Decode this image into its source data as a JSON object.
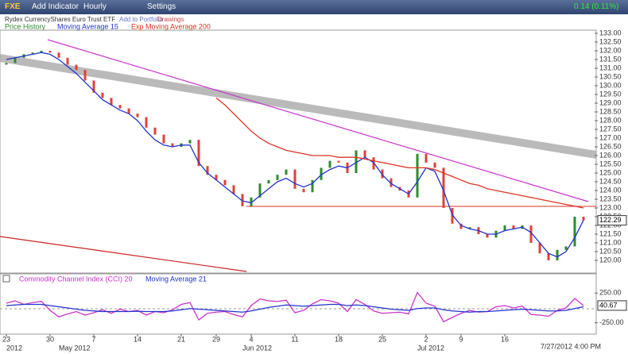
{
  "toolbar": {
    "symbol": "FXE",
    "items": [
      "Add Indicator",
      "Hourly",
      "Settings"
    ],
    "change": "0.14 (0.11%)"
  },
  "chart_data": [
    {
      "type": "candle",
      "subtitle": "Rydex CurrencyShares Euro Trust ETF",
      "links": [
        "Add to Portfolio",
        "Drawings"
      ],
      "up_color": "#2e8b2e",
      "down_color": "#e0403a",
      "series": [
        {
          "name": "Price History",
          "color": "#2e8b2e",
          "values": [
            131.3,
            131.6,
            131.8,
            131.9,
            132.0,
            131.9,
            131.6,
            131.2,
            130.9,
            130.3,
            129.6,
            129.3,
            128.9,
            128.7,
            128.4,
            128.2,
            127.6,
            127.2,
            126.7,
            126.5,
            126.7,
            126.9,
            125.4,
            124.9,
            124.6,
            124.3,
            123.8,
            123.1,
            123.6,
            124.4,
            124.6,
            124.9,
            125.2,
            124.1,
            123.9,
            124.6,
            125.3,
            125.7,
            125.6,
            125.0,
            126.3,
            125.9,
            125.2,
            124.7,
            124.2,
            124.0,
            123.6,
            126.1,
            125.6,
            125.3,
            123.0,
            122.1,
            121.8,
            121.9,
            121.5,
            121.3,
            121.7,
            122.0,
            121.8,
            122.0,
            121.0,
            120.4,
            120.0,
            120.6,
            120.8,
            122.5,
            122.29
          ]
        },
        {
          "name": "Moving Average 15",
          "color": "#2233cc",
          "values": [
            131.5,
            131.6,
            131.7,
            131.8,
            131.9,
            131.8,
            131.5,
            131.1,
            130.7,
            130.2,
            129.7,
            129.2,
            128.9,
            128.6,
            128.4,
            128.0,
            127.4,
            126.9,
            126.6,
            126.5,
            126.6,
            126.6,
            125.6,
            125.0,
            124.6,
            124.2,
            123.8,
            123.4,
            123.3,
            123.7,
            124.1,
            124.5,
            124.7,
            124.4,
            124.2,
            124.4,
            124.9,
            125.2,
            125.4,
            125.3,
            125.6,
            125.9,
            125.6,
            124.9,
            124.4,
            124.1,
            123.8,
            124.5,
            125.3,
            125.1,
            124.0,
            122.6,
            122.0,
            121.8,
            121.7,
            121.5,
            121.5,
            121.7,
            121.8,
            121.9,
            121.6,
            121.0,
            120.4,
            120.2,
            120.5,
            121.3,
            122.3
          ]
        },
        {
          "name": "Exp Moving Average 200",
          "color": "#dd3322",
          "values": [
            null,
            null,
            null,
            null,
            null,
            null,
            null,
            null,
            null,
            null,
            null,
            null,
            null,
            null,
            null,
            null,
            null,
            null,
            null,
            null,
            null,
            null,
            null,
            null,
            129.3,
            128.9,
            128.4,
            127.9,
            127.4,
            127.0,
            126.7,
            126.5,
            126.3,
            126.2,
            126.1,
            126.0,
            126.0,
            126.0,
            125.9,
            125.9,
            125.9,
            125.8,
            125.7,
            125.6,
            125.5,
            125.4,
            125.3,
            125.3,
            125.3,
            125.2,
            125.0,
            124.8,
            124.6,
            124.4,
            124.3,
            124.1,
            124.0,
            123.9,
            123.8,
            123.7,
            123.6,
            123.5,
            123.4,
            123.3,
            123.2,
            123.1,
            123.0
          ]
        }
      ],
      "ylim": [
        120,
        133
      ],
      "yticks": [
        {
          "value": 120,
          "label": "120.00"
        },
        {
          "value": 120.5,
          "label": "120.50"
        },
        {
          "value": 121,
          "label": "121.00"
        },
        {
          "value": 121.5,
          "label": "121.50"
        },
        {
          "value": 122,
          "label": "122.00"
        },
        {
          "value": 122.5,
          "label": "122.50"
        },
        {
          "value": 123,
          "label": "123.00"
        },
        {
          "value": 123.5,
          "label": "123.50"
        },
        {
          "value": 124,
          "label": "124.00"
        },
        {
          "value": 124.5,
          "label": "124.50"
        },
        {
          "value": 125,
          "label": "125.00"
        },
        {
          "value": 125.5,
          "label": "125.50"
        },
        {
          "value": 126,
          "label": "126.00"
        },
        {
          "value": 126.5,
          "label": "126.50"
        },
        {
          "value": 127,
          "label": "127.00"
        },
        {
          "value": 127.5,
          "label": "127.50"
        },
        {
          "value": 128,
          "label": "128.00"
        },
        {
          "value": 128.5,
          "label": "128.50"
        },
        {
          "value": 129,
          "label": "129.00"
        },
        {
          "value": 129.5,
          "label": "129.50"
        },
        {
          "value": 130,
          "label": "130.00"
        },
        {
          "value": 130.5,
          "label": "130.50"
        },
        {
          "value": 131,
          "label": "131.00"
        },
        {
          "value": 131.5,
          "label": "131.50"
        },
        {
          "value": 132,
          "label": "132.00"
        },
        {
          "value": 132.5,
          "label": "132.50"
        },
        {
          "value": 133,
          "label": "133.00"
        }
      ],
      "last_value": 122.29
    },
    {
      "type": "line",
      "series": [
        {
          "name": "Commodity Channel Index (CCI) 20",
          "color": "#cc33cc",
          "values": [
            80,
            120,
            60,
            90,
            110,
            -40,
            -150,
            -100,
            -60,
            -120,
            -80,
            -30,
            -90,
            -20,
            -60,
            -40,
            -120,
            -60,
            -80,
            -30,
            60,
            90,
            -200,
            -90,
            -70,
            -60,
            -110,
            -150,
            40,
            150,
            120,
            110,
            130,
            -80,
            -40,
            70,
            140,
            120,
            80,
            -60,
            140,
            60,
            -50,
            -90,
            -80,
            -70,
            -100,
            260,
            80,
            30,
            -230,
            -160,
            -90,
            -40,
            -70,
            -60,
            20,
            40,
            0,
            30,
            -110,
            -120,
            -140,
            -40,
            0,
            160,
            40.67
          ]
        },
        {
          "name": "Moving Average 21",
          "color": "#2233cc",
          "values": [
            40,
            50,
            60,
            60,
            60,
            40,
            20,
            0,
            -20,
            -40,
            -50,
            -60,
            -60,
            -60,
            -60,
            -55,
            -60,
            -60,
            -60,
            -50,
            -30,
            -10,
            -20,
            -30,
            -40,
            -50,
            -60,
            -70,
            -50,
            -20,
            10,
            30,
            50,
            40,
            30,
            40,
            50,
            60,
            60,
            40,
            50,
            40,
            20,
            0,
            -20,
            -30,
            -40,
            -10,
            0,
            0,
            -30,
            -50,
            -60,
            -70,
            -60,
            -60,
            -50,
            -40,
            -30,
            -20,
            -30,
            -40,
            -50,
            -50,
            -40,
            -10,
            20
          ]
        }
      ],
      "ylim": [
        -400,
        400
      ],
      "yticks": [
        {
          "value": 250,
          "label": "250.00"
        },
        {
          "value": -250,
          "label": "-250.00"
        }
      ],
      "last_value": 40.67,
      "xticks": [
        {
          "value": 0,
          "label": "23"
        },
        {
          "value": 5,
          "label": "30"
        },
        {
          "value": 10,
          "label": "7"
        },
        {
          "value": 15,
          "label": "14"
        },
        {
          "value": 20,
          "label": "21"
        },
        {
          "value": 24,
          "label": "29"
        },
        {
          "value": 28,
          "label": "4"
        },
        {
          "value": 33,
          "label": "11"
        },
        {
          "value": 38,
          "label": "18"
        },
        {
          "value": 43,
          "label": "25"
        },
        {
          "value": 48,
          "label": "2"
        },
        {
          "value": 52,
          "label": "9"
        },
        {
          "value": 57,
          "label": "16"
        }
      ],
      "xmonths": [
        {
          "value": 0,
          "label": "2012"
        },
        {
          "value": 6,
          "label": "May 2012"
        },
        {
          "value": 27,
          "label": "Jun 2012"
        },
        {
          "value": 47,
          "label": "Jul 2012"
        }
      ],
      "timestamp": "7/27/2012 4:00 PM"
    }
  ]
}
